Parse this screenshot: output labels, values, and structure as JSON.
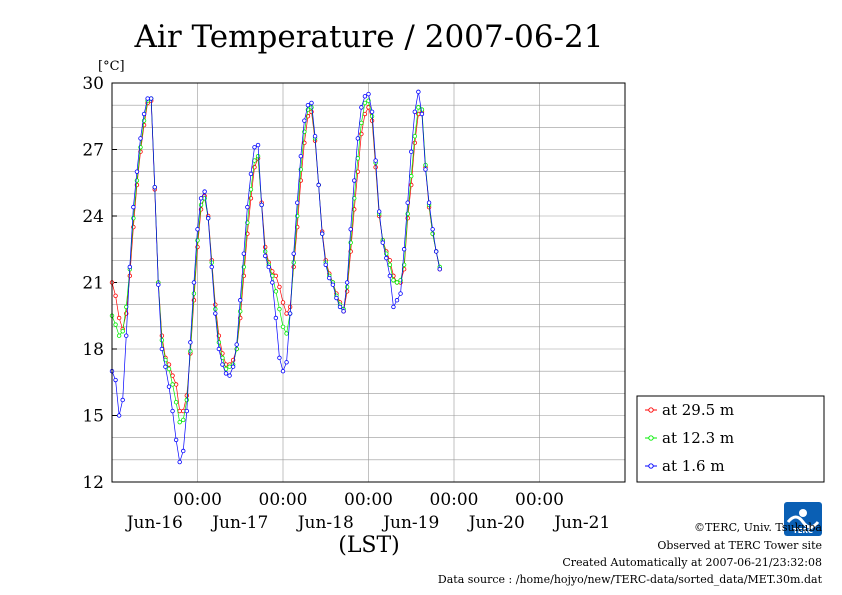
{
  "chart_data": {
    "type": "line",
    "title": "Air Temperature / 2007-06-21",
    "ylabel": "[°C]",
    "xlabel": "(LST)",
    "ylim": [
      12,
      30
    ],
    "yticks": [
      12,
      15,
      18,
      21,
      24,
      27,
      30
    ],
    "xlim": [
      0,
      144
    ],
    "x_unit": "hours since Jun-15 24:00 LST",
    "midnight_ticks": [
      {
        "x": 24,
        "time": "00:00",
        "day": "Jun-16"
      },
      {
        "x": 48,
        "time": "00:00",
        "day": "Jun-17"
      },
      {
        "x": 72,
        "time": "00:00",
        "day": "Jun-18"
      },
      {
        "x": 96,
        "time": "00:00",
        "day": "Jun-19"
      },
      {
        "x": 120,
        "time": "00:00",
        "day": "Jun-20"
      },
      {
        "x": ""
      }
    ],
    "day_labels": [
      {
        "x": 12,
        "label": "Jun-16"
      },
      {
        "x": 36,
        "label": "Jun-17"
      },
      {
        "x": 60,
        "label": "Jun-18"
      },
      {
        "x": 84,
        "label": "Jun-19"
      },
      {
        "x": 108,
        "label": "Jun-20"
      },
      {
        "x": 132,
        "label": "Jun-21"
      }
    ],
    "grid": true,
    "legend_position": "bottom-right outside plot",
    "series": [
      {
        "name": "at 29.5 m",
        "color": "#ff0000",
        "points": [
          [
            0,
            21.0
          ],
          [
            1,
            20.4
          ],
          [
            2,
            19.4
          ],
          [
            3,
            18.9
          ],
          [
            4,
            19.6
          ],
          [
            5,
            21.3
          ],
          [
            6,
            23.5
          ],
          [
            7,
            25.4
          ],
          [
            8,
            26.9
          ],
          [
            9,
            28.1
          ],
          [
            10,
            29.1
          ],
          [
            11,
            29.2
          ],
          [
            12,
            25.2
          ],
          [
            13,
            21.0
          ],
          [
            14,
            18.6
          ],
          [
            15,
            17.6
          ],
          [
            16,
            17.3
          ],
          [
            17,
            16.8
          ],
          [
            18,
            16.4
          ],
          [
            19,
            15.2
          ],
          [
            20,
            15.2
          ],
          [
            21,
            15.9
          ],
          [
            22,
            17.8
          ],
          [
            23,
            20.2
          ],
          [
            24,
            22.6
          ],
          [
            25,
            24.3
          ],
          [
            26,
            24.9
          ],
          [
            27,
            24.0
          ],
          [
            28,
            22.0
          ],
          [
            29,
            20.0
          ],
          [
            30,
            18.6
          ],
          [
            31,
            17.8
          ],
          [
            32,
            17.3
          ],
          [
            33,
            17.3
          ],
          [
            34,
            17.5
          ],
          [
            35,
            18.0
          ],
          [
            36,
            19.4
          ],
          [
            37,
            21.3
          ],
          [
            38,
            23.2
          ],
          [
            39,
            24.8
          ],
          [
            40,
            26.2
          ],
          [
            41,
            26.6
          ],
          [
            42,
            24.6
          ],
          [
            43,
            22.6
          ],
          [
            44,
            21.9
          ],
          [
            45,
            21.5
          ],
          [
            46,
            21.3
          ],
          [
            47,
            20.8
          ],
          [
            48,
            20.1
          ],
          [
            49,
            19.6
          ],
          [
            50,
            19.9
          ],
          [
            51,
            21.7
          ],
          [
            52,
            23.5
          ],
          [
            53,
            25.6
          ],
          [
            54,
            27.3
          ],
          [
            55,
            28.5
          ],
          [
            56,
            28.7
          ],
          [
            57,
            27.4
          ],
          [
            58,
            25.4
          ],
          [
            59,
            23.3
          ],
          [
            60,
            22.0
          ],
          [
            61,
            21.4
          ],
          [
            62,
            21.0
          ],
          [
            63,
            20.5
          ],
          [
            64,
            20.1
          ],
          [
            65,
            19.7
          ],
          [
            66,
            20.6
          ],
          [
            67,
            22.4
          ],
          [
            68,
            24.3
          ],
          [
            69,
            26.0
          ],
          [
            70,
            27.7
          ],
          [
            71,
            28.6
          ],
          [
            72,
            28.9
          ],
          [
            73,
            28.3
          ],
          [
            74,
            26.2
          ],
          [
            75,
            24.0
          ],
          [
            76,
            22.9
          ],
          [
            77,
            22.4
          ],
          [
            78,
            22.0
          ],
          [
            79,
            21.3
          ],
          [
            80,
            21.0
          ],
          [
            81,
            21.0
          ],
          [
            82,
            21.6
          ],
          [
            83,
            23.9
          ],
          [
            84,
            25.4
          ],
          [
            85,
            27.3
          ],
          [
            86,
            28.6
          ],
          [
            87,
            28.7
          ],
          [
            88,
            26.2
          ],
          [
            89,
            24.4
          ],
          [
            90,
            23.2
          ],
          [
            91,
            22.4
          ],
          [
            92,
            21.6
          ]
        ]
      },
      {
        "name": "at 12.3 m",
        "color": "#00ee00",
        "points": [
          [
            0,
            19.5
          ],
          [
            1,
            19.1
          ],
          [
            2,
            18.6
          ],
          [
            3,
            18.8
          ],
          [
            4,
            19.9
          ],
          [
            5,
            21.6
          ],
          [
            6,
            23.9
          ],
          [
            7,
            25.6
          ],
          [
            8,
            27.1
          ],
          [
            9,
            28.3
          ],
          [
            10,
            29.2
          ],
          [
            11,
            29.3
          ],
          [
            12,
            25.3
          ],
          [
            13,
            21.0
          ],
          [
            14,
            18.4
          ],
          [
            15,
            17.5
          ],
          [
            16,
            17.1
          ],
          [
            17,
            16.4
          ],
          [
            18,
            15.6
          ],
          [
            19,
            14.7
          ],
          [
            20,
            14.8
          ],
          [
            21,
            15.7
          ],
          [
            22,
            17.9
          ],
          [
            23,
            20.5
          ],
          [
            24,
            22.9
          ],
          [
            25,
            24.5
          ],
          [
            26,
            24.8
          ],
          [
            27,
            23.9
          ],
          [
            28,
            21.9
          ],
          [
            29,
            19.8
          ],
          [
            30,
            18.3
          ],
          [
            31,
            17.6
          ],
          [
            32,
            17.1
          ],
          [
            33,
            17.2
          ],
          [
            34,
            17.3
          ],
          [
            35,
            18.0
          ],
          [
            36,
            19.7
          ],
          [
            37,
            21.7
          ],
          [
            38,
            23.7
          ],
          [
            39,
            25.2
          ],
          [
            40,
            26.5
          ],
          [
            41,
            26.7
          ],
          [
            42,
            24.5
          ],
          [
            43,
            22.4
          ],
          [
            44,
            21.8
          ],
          [
            45,
            21.3
          ],
          [
            46,
            20.6
          ],
          [
            47,
            19.8
          ],
          [
            48,
            19.0
          ],
          [
            49,
            18.7
          ],
          [
            50,
            19.6
          ],
          [
            51,
            21.9
          ],
          [
            52,
            24.0
          ],
          [
            53,
            26.1
          ],
          [
            54,
            27.8
          ],
          [
            55,
            28.8
          ],
          [
            56,
            28.9
          ],
          [
            57,
            27.5
          ],
          [
            58,
            25.4
          ],
          [
            59,
            23.2
          ],
          [
            60,
            21.9
          ],
          [
            61,
            21.3
          ],
          [
            62,
            21.0
          ],
          [
            63,
            20.4
          ],
          [
            64,
            20.0
          ],
          [
            65,
            19.8
          ],
          [
            66,
            20.8
          ],
          [
            67,
            22.8
          ],
          [
            68,
            24.8
          ],
          [
            69,
            26.6
          ],
          [
            70,
            28.2
          ],
          [
            71,
            29.1
          ],
          [
            72,
            29.2
          ],
          [
            73,
            28.5
          ],
          [
            74,
            26.4
          ],
          [
            75,
            24.1
          ],
          [
            76,
            22.9
          ],
          [
            77,
            22.3
          ],
          [
            78,
            21.8
          ],
          [
            79,
            21.1
          ],
          [
            80,
            21.0
          ],
          [
            81,
            21.1
          ],
          [
            82,
            21.8
          ],
          [
            83,
            24.1
          ],
          [
            84,
            25.8
          ],
          [
            85,
            27.6
          ],
          [
            86,
            28.9
          ],
          [
            87,
            28.8
          ],
          [
            88,
            26.3
          ],
          [
            89,
            24.5
          ],
          [
            90,
            23.2
          ],
          [
            91,
            22.4
          ],
          [
            92,
            21.7
          ]
        ]
      },
      {
        "name": "at 1.6 m",
        "color": "#0000ff",
        "points": [
          [
            0,
            17.0
          ],
          [
            1,
            16.6
          ],
          [
            2,
            15.0
          ],
          [
            3,
            15.7
          ],
          [
            4,
            18.6
          ],
          [
            5,
            21.7
          ],
          [
            6,
            24.4
          ],
          [
            7,
            26.0
          ],
          [
            8,
            27.5
          ],
          [
            9,
            28.6
          ],
          [
            10,
            29.3
          ],
          [
            11,
            29.3
          ],
          [
            12,
            25.3
          ],
          [
            13,
            20.9
          ],
          [
            14,
            18.0
          ],
          [
            15,
            17.2
          ],
          [
            16,
            16.3
          ],
          [
            17,
            15.2
          ],
          [
            18,
            13.9
          ],
          [
            19,
            12.9
          ],
          [
            20,
            13.4
          ],
          [
            21,
            15.2
          ],
          [
            22,
            18.3
          ],
          [
            23,
            21.0
          ],
          [
            24,
            23.4
          ],
          [
            25,
            24.8
          ],
          [
            26,
            25.1
          ],
          [
            27,
            23.9
          ],
          [
            28,
            21.7
          ],
          [
            29,
            19.6
          ],
          [
            30,
            18.0
          ],
          [
            31,
            17.3
          ],
          [
            32,
            16.9
          ],
          [
            33,
            16.8
          ],
          [
            34,
            17.2
          ],
          [
            35,
            18.2
          ],
          [
            36,
            20.2
          ],
          [
            37,
            22.3
          ],
          [
            38,
            24.4
          ],
          [
            39,
            25.9
          ],
          [
            40,
            27.1
          ],
          [
            41,
            27.2
          ],
          [
            42,
            24.5
          ],
          [
            43,
            22.2
          ],
          [
            44,
            21.7
          ],
          [
            45,
            21.0
          ],
          [
            46,
            19.4
          ],
          [
            47,
            17.6
          ],
          [
            48,
            17.0
          ],
          [
            49,
            17.4
          ],
          [
            50,
            19.6
          ],
          [
            51,
            22.3
          ],
          [
            52,
            24.6
          ],
          [
            53,
            26.7
          ],
          [
            54,
            28.3
          ],
          [
            55,
            29.0
          ],
          [
            56,
            29.1
          ],
          [
            57,
            27.6
          ],
          [
            58,
            25.4
          ],
          [
            59,
            23.2
          ],
          [
            60,
            21.8
          ],
          [
            61,
            21.2
          ],
          [
            62,
            20.9
          ],
          [
            63,
            20.3
          ],
          [
            64,
            19.9
          ],
          [
            65,
            19.7
          ],
          [
            66,
            21.0
          ],
          [
            67,
            23.4
          ],
          [
            68,
            25.6
          ],
          [
            69,
            27.5
          ],
          [
            70,
            28.9
          ],
          [
            71,
            29.4
          ],
          [
            72,
            29.5
          ],
          [
            73,
            28.7
          ],
          [
            74,
            26.5
          ],
          [
            75,
            24.2
          ],
          [
            76,
            22.8
          ],
          [
            77,
            22.1
          ],
          [
            78,
            21.3
          ],
          [
            79,
            19.9
          ],
          [
            80,
            20.2
          ],
          [
            81,
            20.5
          ],
          [
            82,
            22.5
          ],
          [
            83,
            24.6
          ],
          [
            84,
            26.9
          ],
          [
            85,
            28.7
          ],
          [
            86,
            29.6
          ],
          [
            87,
            28.6
          ],
          [
            88,
            26.1
          ],
          [
            89,
            24.6
          ],
          [
            90,
            23.4
          ],
          [
            91,
            22.4
          ],
          [
            92,
            21.6
          ]
        ]
      }
    ]
  },
  "footer": {
    "copyright": "©TERC, Univ. Tsukuba",
    "observed": "Observed at TERC Tower site",
    "created": "Created Automatically at 2007-06-21/23:32:08",
    "source": "Data source : /home/hojyo/new/TERC-data/sorted_data/MET.30m.dat"
  },
  "logo": {
    "text": "TERC",
    "color": "#0a5fb4"
  }
}
